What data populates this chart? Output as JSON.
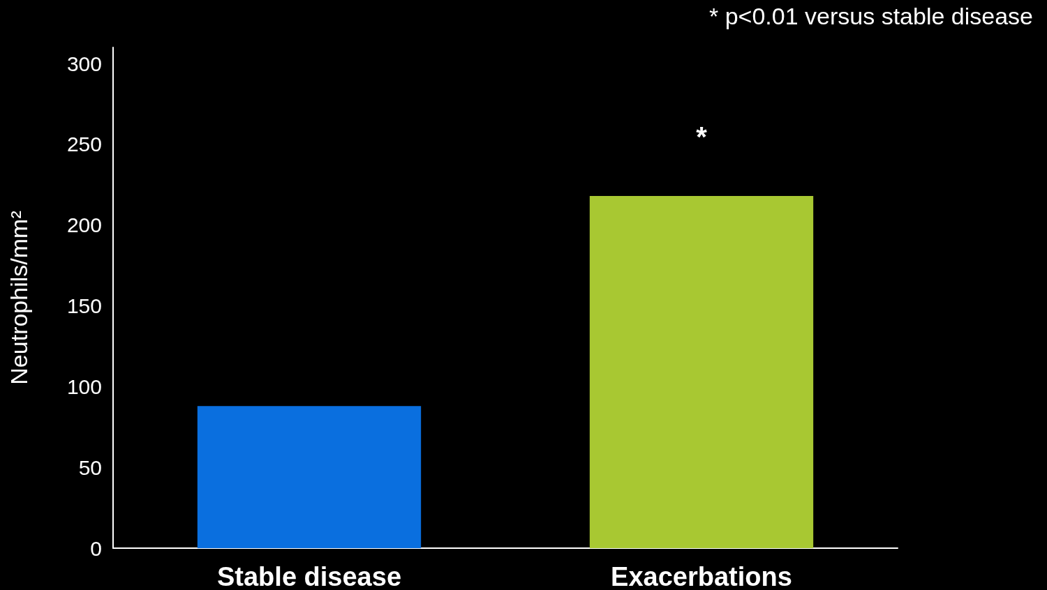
{
  "chart_data": {
    "type": "bar",
    "ylabel": "Neutrophils/mm²",
    "categories": [
      "Stable disease",
      "Exacerbations"
    ],
    "values": [
      88,
      218
    ],
    "colors": [
      "#0a6fdf",
      "#a8c832"
    ],
    "ylim": [
      0,
      310
    ],
    "yticks": [
      0,
      50,
      100,
      150,
      200,
      250,
      300
    ],
    "grid": false,
    "annotations": [
      "* p<0.01 versus stable disease",
      "*"
    ]
  }
}
